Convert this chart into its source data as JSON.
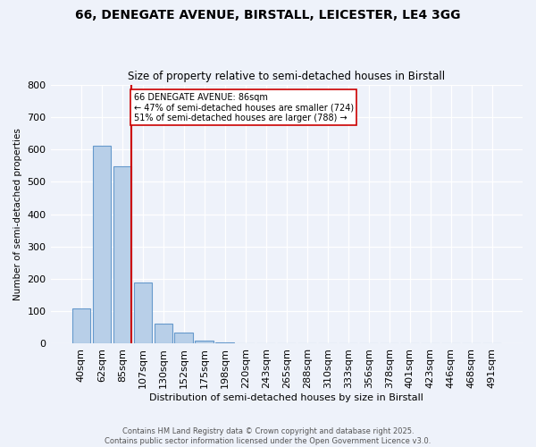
{
  "title1": "66, DENEGATE AVENUE, BIRSTALL, LEICESTER, LE4 3GG",
  "title2": "Size of property relative to semi-detached houses in Birstall",
  "xlabel": "Distribution of semi-detached houses by size in Birstall",
  "ylabel": "Number of semi-detached properties",
  "categories": [
    "40sqm",
    "62sqm",
    "85sqm",
    "107sqm",
    "130sqm",
    "152sqm",
    "175sqm",
    "198sqm",
    "220sqm",
    "243sqm",
    "265sqm",
    "288sqm",
    "310sqm",
    "333sqm",
    "356sqm",
    "378sqm",
    "401sqm",
    "423sqm",
    "446sqm",
    "468sqm",
    "491sqm"
  ],
  "values": [
    110,
    612,
    547,
    188,
    62,
    35,
    10,
    5,
    0,
    0,
    0,
    0,
    0,
    0,
    0,
    0,
    0,
    0,
    0,
    0,
    0
  ],
  "bar_color": "#b8cfe8",
  "bar_edge_color": "#6699cc",
  "property_line_color": "#cc0000",
  "annotation_text": "66 DENEGATE AVENUE: 86sqm\n← 47% of semi-detached houses are smaller (724)\n51% of semi-detached houses are larger (788) →",
  "annotation_box_color": "#ffffff",
  "annotation_box_edge": "#cc0000",
  "ylim": [
    0,
    800
  ],
  "yticks": [
    0,
    100,
    200,
    300,
    400,
    500,
    600,
    700,
    800
  ],
  "footer1": "Contains HM Land Registry data © Crown copyright and database right 2025.",
  "footer2": "Contains public sector information licensed under the Open Government Licence v3.0.",
  "bg_color": "#eef2fa"
}
